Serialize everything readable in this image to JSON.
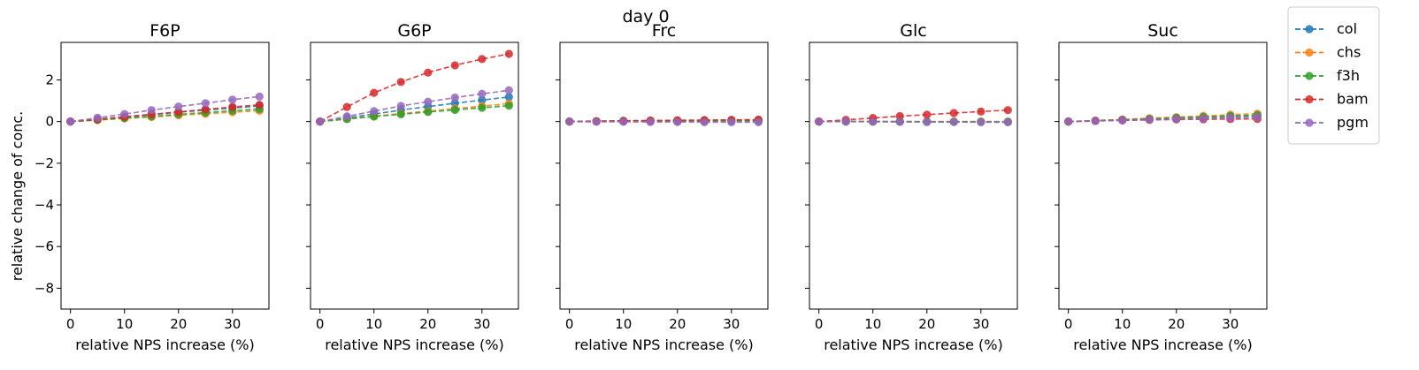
{
  "figure": {
    "suptitle": "day 0",
    "ylabel": "relative change of conc.",
    "xlabel": "relative NPS increase (%)"
  },
  "legend": {
    "placement": "outside-right",
    "items": [
      {
        "label": "col",
        "color": "#1f77b4"
      },
      {
        "label": "chs",
        "color": "#ff7f0e"
      },
      {
        "label": "f3h",
        "color": "#2ca02c"
      },
      {
        "label": "bam",
        "color": "#d62728"
      },
      {
        "label": "pgm",
        "color": "#9467bd"
      }
    ]
  },
  "chart_data": [
    {
      "type": "line",
      "title": "F6P",
      "xlabel": "relative NPS increase (%)",
      "ylabel": "relative change of conc.",
      "x": [
        0,
        5,
        10,
        15,
        20,
        25,
        30,
        35
      ],
      "xticks": [
        0,
        10,
        20,
        30
      ],
      "yticks": [
        2,
        0,
        -2,
        -4,
        -6,
        -8
      ],
      "xlim": [
        -1.75,
        36.75
      ],
      "ylim": [
        -9,
        3.8
      ],
      "series": [
        {
          "name": "col",
          "color": "#1f77b4",
          "values": [
            0,
            0.1,
            0.22,
            0.33,
            0.45,
            0.55,
            0.65,
            0.75
          ]
        },
        {
          "name": "chs",
          "color": "#ff7f0e",
          "values": [
            0,
            0.07,
            0.15,
            0.22,
            0.3,
            0.37,
            0.45,
            0.52
          ]
        },
        {
          "name": "f3h",
          "color": "#2ca02c",
          "values": [
            0,
            0.08,
            0.17,
            0.25,
            0.35,
            0.43,
            0.52,
            0.6
          ]
        },
        {
          "name": "bam",
          "color": "#d62728",
          "values": [
            0,
            0.11,
            0.23,
            0.35,
            0.46,
            0.58,
            0.7,
            0.8
          ]
        },
        {
          "name": "pgm",
          "color": "#9467bd",
          "values": [
            0,
            0.18,
            0.36,
            0.55,
            0.72,
            0.88,
            1.05,
            1.2
          ]
        }
      ]
    },
    {
      "type": "line",
      "title": "G6P",
      "xlabel": "relative NPS increase (%)",
      "ylabel": "",
      "x": [
        0,
        5,
        10,
        15,
        20,
        25,
        30,
        35
      ],
      "xticks": [
        0,
        10,
        20,
        30
      ],
      "yticks": [
        2,
        0,
        -2,
        -4,
        -6,
        -8
      ],
      "xlim": [
        -1.75,
        36.75
      ],
      "ylim": [
        -9,
        3.8
      ],
      "series": [
        {
          "name": "col",
          "color": "#1f77b4",
          "values": [
            0,
            0.18,
            0.36,
            0.55,
            0.72,
            0.88,
            1.03,
            1.18
          ]
        },
        {
          "name": "chs",
          "color": "#ff7f0e",
          "values": [
            0,
            0.13,
            0.26,
            0.38,
            0.5,
            0.62,
            0.74,
            0.86
          ]
        },
        {
          "name": "f3h",
          "color": "#2ca02c",
          "values": [
            0,
            0.12,
            0.24,
            0.35,
            0.46,
            0.56,
            0.66,
            0.76
          ]
        },
        {
          "name": "bam",
          "color": "#d62728",
          "values": [
            0,
            0.7,
            1.38,
            1.9,
            2.35,
            2.7,
            3.0,
            3.25
          ]
        },
        {
          "name": "pgm",
          "color": "#9467bd",
          "values": [
            0,
            0.25,
            0.5,
            0.75,
            0.95,
            1.15,
            1.33,
            1.5
          ]
        }
      ]
    },
    {
      "type": "line",
      "title": "Frc",
      "xlabel": "relative NPS increase (%)",
      "ylabel": "",
      "x": [
        0,
        5,
        10,
        15,
        20,
        25,
        30,
        35
      ],
      "xticks": [
        0,
        10,
        20,
        30
      ],
      "yticks": [
        2,
        0,
        -2,
        -4,
        -6,
        -8
      ],
      "xlim": [
        -1.75,
        36.75
      ],
      "ylim": [
        -9,
        3.8
      ],
      "series": [
        {
          "name": "col",
          "color": "#1f77b4",
          "values": [
            0,
            0.01,
            0.01,
            0.02,
            0.02,
            0.02,
            0.03,
            0.03
          ]
        },
        {
          "name": "chs",
          "color": "#ff7f0e",
          "values": [
            0,
            0.02,
            0.03,
            0.04,
            0.05,
            0.06,
            0.07,
            0.08
          ]
        },
        {
          "name": "f3h",
          "color": "#2ca02c",
          "values": [
            0,
            0.01,
            0.02,
            0.02,
            0.03,
            0.03,
            0.04,
            0.04
          ]
        },
        {
          "name": "bam",
          "color": "#d62728",
          "values": [
            0,
            0.02,
            0.04,
            0.05,
            0.06,
            0.07,
            0.08,
            0.09
          ]
        },
        {
          "name": "pgm",
          "color": "#9467bd",
          "values": [
            0,
            -0.01,
            -0.01,
            -0.02,
            -0.02,
            -0.03,
            -0.03,
            -0.03
          ]
        }
      ]
    },
    {
      "type": "line",
      "title": "Glc",
      "xlabel": "relative NPS increase (%)",
      "ylabel": "",
      "x": [
        0,
        5,
        10,
        15,
        20,
        25,
        30,
        35
      ],
      "xticks": [
        0,
        10,
        20,
        30
      ],
      "yticks": [
        2,
        0,
        -2,
        -4,
        -6,
        -8
      ],
      "xlim": [
        -1.75,
        36.75
      ],
      "ylim": [
        -9,
        3.8
      ],
      "series": [
        {
          "name": "col",
          "color": "#1f77b4",
          "values": [
            0,
            0,
            0,
            -0.01,
            -0.01,
            -0.01,
            -0.01,
            -0.02
          ]
        },
        {
          "name": "chs",
          "color": "#ff7f0e",
          "values": [
            0,
            0,
            0,
            0,
            0,
            0,
            0,
            0
          ]
        },
        {
          "name": "f3h",
          "color": "#2ca02c",
          "values": [
            0,
            0,
            0,
            0,
            -0.01,
            -0.01,
            -0.01,
            -0.01
          ]
        },
        {
          "name": "bam",
          "color": "#d62728",
          "values": [
            0,
            0.08,
            0.17,
            0.26,
            0.33,
            0.41,
            0.48,
            0.55
          ]
        },
        {
          "name": "pgm",
          "color": "#9467bd",
          "values": [
            0,
            0,
            -0.01,
            -0.01,
            -0.02,
            -0.02,
            -0.03,
            -0.03
          ]
        }
      ]
    },
    {
      "type": "line",
      "title": "Suc",
      "xlabel": "relative NPS increase (%)",
      "ylabel": "",
      "x": [
        0,
        5,
        10,
        15,
        20,
        25,
        30,
        35
      ],
      "xticks": [
        0,
        10,
        20,
        30
      ],
      "yticks": [
        2,
        0,
        -2,
        -4,
        -6,
        -8
      ],
      "xlim": [
        -1.75,
        36.75
      ],
      "ylim": [
        -9,
        3.8
      ],
      "series": [
        {
          "name": "col",
          "color": "#1f77b4",
          "values": [
            0,
            0.04,
            0.08,
            0.12,
            0.16,
            0.2,
            0.24,
            0.28
          ]
        },
        {
          "name": "chs",
          "color": "#ff7f0e",
          "values": [
            0,
            0.05,
            0.1,
            0.16,
            0.21,
            0.27,
            0.33,
            0.38
          ]
        },
        {
          "name": "f3h",
          "color": "#2ca02c",
          "values": [
            0,
            0.04,
            0.09,
            0.13,
            0.18,
            0.22,
            0.27,
            0.31
          ]
        },
        {
          "name": "bam",
          "color": "#d62728",
          "values": [
            0,
            0.03,
            0.06,
            0.08,
            0.1,
            0.11,
            0.12,
            0.13
          ]
        },
        {
          "name": "pgm",
          "color": "#9467bd",
          "values": [
            0,
            0.03,
            0.06,
            0.09,
            0.12,
            0.15,
            0.18,
            0.21
          ]
        }
      ]
    }
  ]
}
